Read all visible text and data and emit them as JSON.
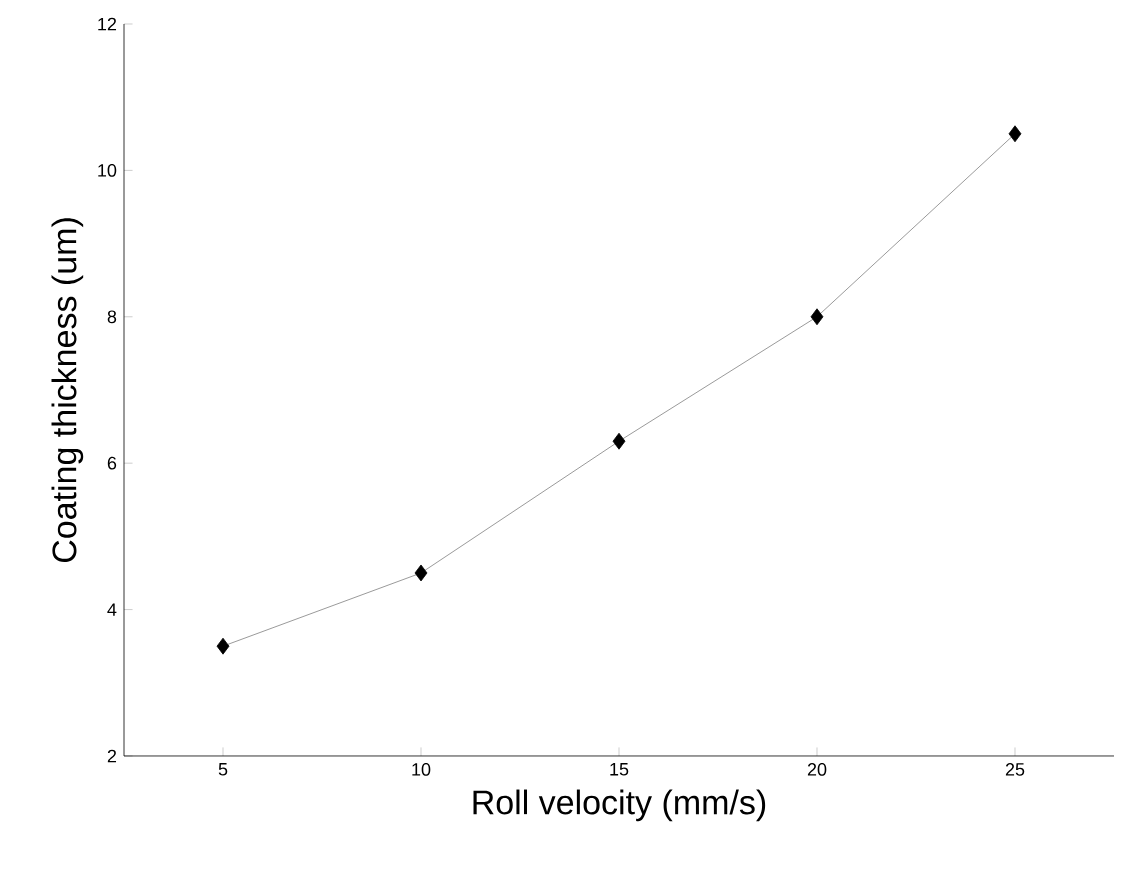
{
  "chart_data": {
    "type": "line",
    "xlabel": "Roll velocity (mm/s)",
    "ylabel": "Coating thickness (um)",
    "x": [
      5,
      10,
      15,
      20,
      25
    ],
    "series": [
      {
        "color": "#000000",
        "values": [
          3.5,
          4.5,
          6.3,
          8.0,
          10.5
        ]
      }
    ],
    "xlim": [
      2.5,
      27.5
    ],
    "ylim": [
      2,
      12
    ],
    "xticks": [
      5,
      10,
      15,
      20,
      25
    ],
    "yticks": [
      2,
      4,
      6,
      8,
      10,
      12
    ],
    "grid": false,
    "marker": "diamond",
    "line_style": "solid"
  }
}
